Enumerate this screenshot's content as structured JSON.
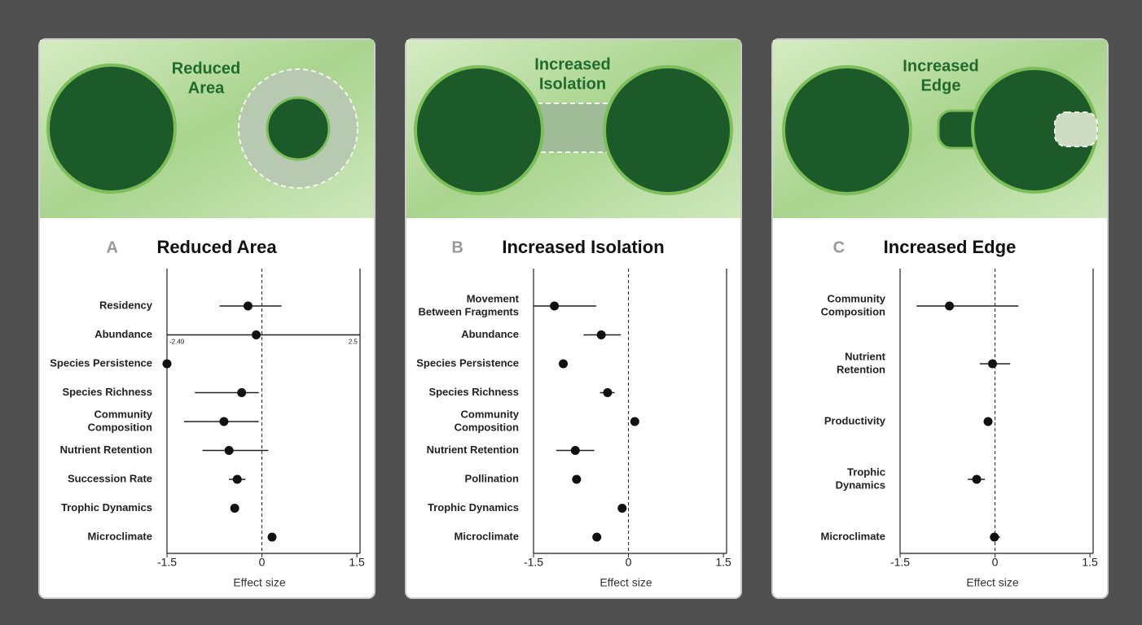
{
  "chart_data": [
    {
      "type": "forest",
      "letter": "A",
      "title": "Reduced Area",
      "illustration_label": [
        "Reduced",
        "Area"
      ],
      "categories": [
        "Residency",
        "Abundance",
        "Species Persistence",
        "Species Richness",
        [
          "Community",
          "Composition"
        ],
        "Nutrient Retention",
        "Succession Rate",
        "Trophic Dynamics",
        "Microclimate"
      ],
      "values": [
        -0.22,
        -0.09,
        -1.5,
        -0.32,
        -0.6,
        -0.52,
        -0.39,
        -0.43,
        0.16
      ],
      "ci": [
        [
          -0.67,
          0.31
        ],
        [
          -2.49,
          2.5
        ],
        null,
        [
          -1.06,
          -0.05
        ],
        [
          -1.23,
          -0.05
        ],
        [
          -0.94,
          0.1
        ],
        [
          -0.52,
          -0.26
        ],
        null,
        null
      ],
      "xlim": [
        -1.5,
        1.55
      ],
      "xticks": [
        -1.5,
        0,
        1.5
      ],
      "xlabel": "Effect size"
    },
    {
      "type": "forest",
      "letter": "B",
      "title": "Increased Isolation",
      "illustration_label": [
        "Increased",
        "Isolation"
      ],
      "categories": [
        [
          "Movement",
          "Between Fragments"
        ],
        "Abundance",
        "Species Persistence",
        "Species Richness",
        [
          "Community",
          "Composition"
        ],
        "Nutrient Retention",
        "Pollination",
        "Trophic Dynamics",
        "Microclimate"
      ],
      "values": [
        -1.17,
        -0.43,
        -1.03,
        -0.33,
        0.1,
        -0.84,
        -0.82,
        -0.1,
        -0.5
      ],
      "ci": [
        [
          -1.5,
          -0.51
        ],
        [
          -0.71,
          -0.12
        ],
        null,
        [
          -0.45,
          -0.22
        ],
        null,
        [
          -1.14,
          -0.54
        ],
        null,
        null,
        null
      ],
      "xlim": [
        -1.5,
        1.55
      ],
      "xticks": [
        -1.5,
        0,
        1.5
      ],
      "xlabel": "Effect size"
    },
    {
      "type": "forest",
      "letter": "C",
      "title": "Increased Edge",
      "illustration_label": [
        "Increased",
        "Edge"
      ],
      "categories": [
        [
          "Community",
          "Composition"
        ],
        [
          "Nutrient",
          "Retention"
        ],
        "Productivity",
        [
          "Trophic",
          "Dynamics"
        ],
        "Microclimate"
      ],
      "values": [
        -0.72,
        -0.04,
        -0.11,
        -0.29,
        -0.01
      ],
      "ci": [
        [
          -1.24,
          0.37
        ],
        [
          -0.24,
          0.24
        ],
        null,
        [
          -0.43,
          -0.16
        ],
        [
          -0.08,
          0.08
        ]
      ],
      "xlim": [
        -1.5,
        1.55
      ],
      "xticks": [
        -1.5,
        0,
        1.5
      ],
      "xlabel": "Effect size"
    }
  ]
}
